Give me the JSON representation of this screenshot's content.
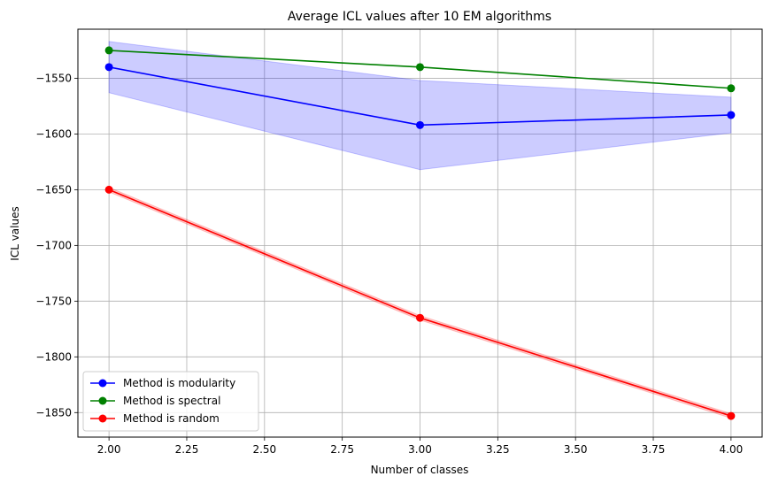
{
  "chart_data": {
    "type": "line",
    "title": "Average ICL values after 10 EM algorithms",
    "xlabel": "Number of classes",
    "ylabel": "ICL values",
    "x": [
      2,
      3,
      4
    ],
    "xlim": [
      1.9,
      4.1
    ],
    "ylim": [
      -1872,
      -1506
    ],
    "xticks": [
      2.0,
      2.25,
      2.5,
      2.75,
      3.0,
      3.25,
      3.5,
      3.75,
      4.0
    ],
    "xtick_labels": [
      "2.00",
      "2.25",
      "2.50",
      "2.75",
      "3.00",
      "3.25",
      "3.50",
      "3.75",
      "4.00"
    ],
    "yticks": [
      -1850,
      -1800,
      -1750,
      -1700,
      -1650,
      -1600,
      -1550
    ],
    "ytick_labels": [
      "−1850",
      "−1800",
      "−1750",
      "−1700",
      "−1650",
      "−1600",
      "−1550"
    ],
    "grid": true,
    "legend_position": "lower-left",
    "series": [
      {
        "name": "Method is modularity",
        "color": "#0000ff",
        "values": [
          -1540,
          -1592,
          -1583
        ],
        "band_upper": [
          -1517,
          -1552,
          -1567
        ],
        "band_lower": [
          -1563,
          -1632,
          -1599
        ]
      },
      {
        "name": "Method is spectral",
        "color": "#008000",
        "values": [
          -1525,
          -1540,
          -1559
        ],
        "band_upper": [
          -1525,
          -1540,
          -1559
        ],
        "band_lower": [
          -1525,
          -1540,
          -1559
        ]
      },
      {
        "name": "Method is random",
        "color": "#ff0000",
        "values": [
          -1650,
          -1765,
          -1853
        ],
        "band_upper": [
          -1648,
          -1763,
          -1851
        ],
        "band_lower": [
          -1652,
          -1767,
          -1855
        ]
      }
    ]
  }
}
